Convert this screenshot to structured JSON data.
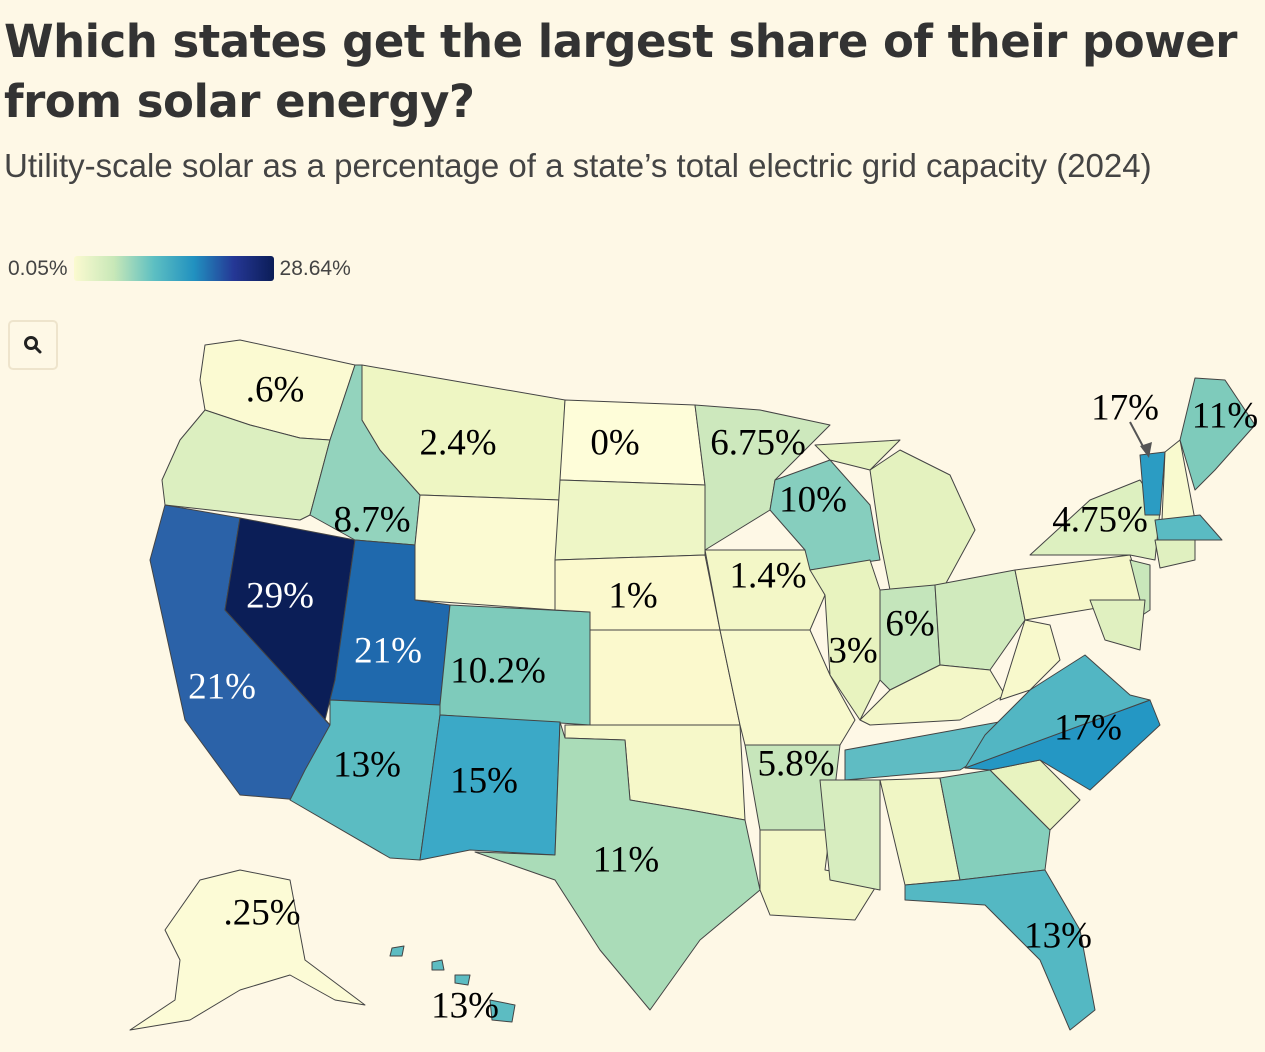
{
  "header": {
    "title": "Which states get the largest share of their power from solar energy?",
    "subtitle": "Utility-scale solar as a percentage of a state’s total electric grid capacity (2024)"
  },
  "legend": {
    "min": "0.05%",
    "max": "28.64%"
  },
  "search": {
    "icon": "search-icon"
  },
  "fills": {
    "WA": "#fbfad2",
    "OR": "#dcefc0",
    "CA": "#2b62a8",
    "NV": "#0b1e57",
    "ID": "#93d3bd",
    "MT": "#eef6c3",
    "WY": "#fbfad2",
    "UT": "#1f69ad",
    "CO": "#7ecbbb",
    "AZ": "#5bbcc2",
    "NM": "#3ba9c7",
    "ND": "#fefdd9",
    "SD": "#eef6c6",
    "NE": "#fbf9cd",
    "KS": "#fbf9cd",
    "OK": "#f6f8c9",
    "TX": "#aadcb8",
    "MN": "#cde8bd",
    "IA": "#f3f7c7",
    "MO": "#f8f9cd",
    "AR": "#c7e6bb",
    "LA": "#f3f7c7",
    "WI": "#86cebe",
    "IL": "#e8f3bf",
    "MI": "#e4f2bf",
    "IN": "#c4e5bb",
    "OH": "#d0eabd",
    "KY": "#f3f7c8",
    "TN": "#5fbcc3",
    "MS": "#d7edbf",
    "AL": "#f0f6c5",
    "GA": "#85cfbc",
    "FL": "#54b8c3",
    "SC": "#e8f3c0",
    "NC": "#2497c4",
    "VA": "#52b6c3",
    "WV": "#f8f9cc",
    "PA": "#f5f7c9",
    "NY": "#ddf0c0",
    "VT": "#2b9cc3",
    "NH": "#f9facf",
    "ME": "#7ecbbb",
    "MA": "#5abbc3",
    "CT": "#e0f0c0",
    "NJ": "#c9e7bb",
    "MD": "#e0f0c0",
    "AK": "#fcfbd6",
    "HI": "#5cbcc2"
  },
  "labels": [
    ".6%",
    "2.4%",
    "0%",
    "6.75%",
    "17%",
    "11%",
    "8.7%",
    "10%",
    "4.75%",
    "29%",
    "1%",
    "1.4%",
    "21%",
    "6%",
    "10.2%",
    "3%",
    "21%",
    "17%",
    "13%",
    "5.8%",
    "15%",
    "11%",
    ".25%",
    "13%",
    "13%"
  ]
}
